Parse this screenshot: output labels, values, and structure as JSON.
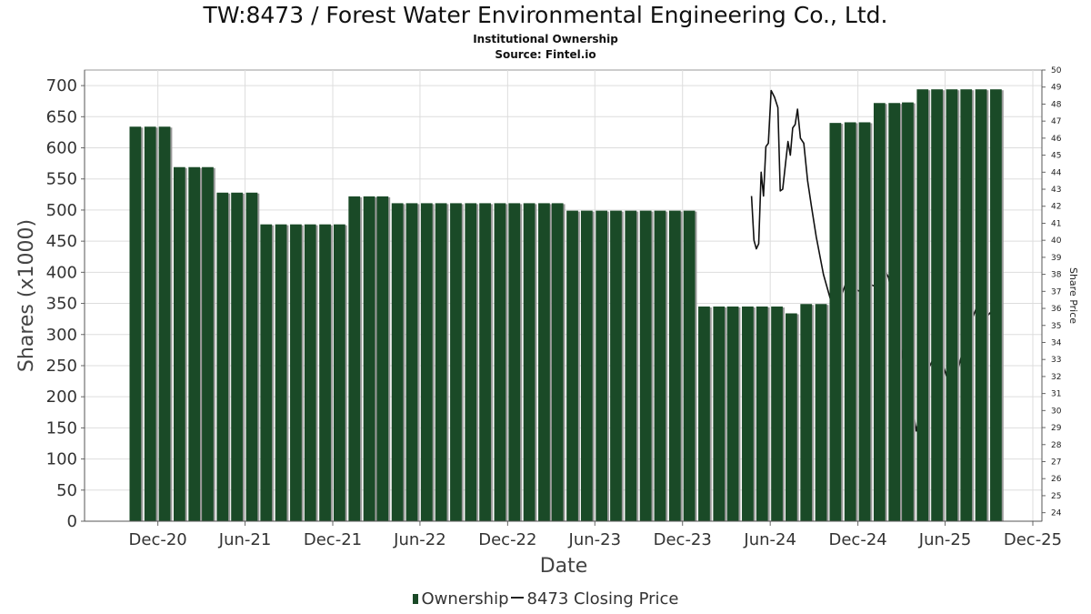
{
  "chart_data": {
    "type": "bar",
    "title": "TW:8473 / Forest Water Environmental Engineering Co., Ltd.",
    "subtitle": "Institutional Ownership",
    "source": "Source: Fintel.io",
    "xlabel": "Date",
    "ylabel": "Shares (x1000)",
    "y2label": "Share Price",
    "ylim": [
      0,
      725
    ],
    "y2lim": [
      23.5,
      50
    ],
    "yticks": [
      0,
      50,
      100,
      150,
      200,
      250,
      300,
      350,
      400,
      450,
      500,
      550,
      600,
      650,
      700
    ],
    "y2ticks": [
      24,
      25,
      26,
      27,
      28,
      29,
      30,
      31,
      32,
      33,
      34,
      35,
      36,
      37,
      38,
      39,
      40,
      41,
      42,
      43,
      44,
      45,
      46,
      47,
      48,
      49,
      50
    ],
    "xlim": [
      "2020-07-01",
      "2025-12-20"
    ],
    "xticks": [
      {
        "label": "Dec-20",
        "date": "2020-12-01"
      },
      {
        "label": "Jun-21",
        "date": "2021-06-01"
      },
      {
        "label": "Dec-21",
        "date": "2021-12-01"
      },
      {
        "label": "Jun-22",
        "date": "2022-06-01"
      },
      {
        "label": "Dec-22",
        "date": "2022-12-01"
      },
      {
        "label": "Jun-23",
        "date": "2023-06-01"
      },
      {
        "label": "Dec-23",
        "date": "2023-12-01"
      },
      {
        "label": "Jun-24",
        "date": "2024-06-01"
      },
      {
        "label": "Dec-24",
        "date": "2024-12-01"
      },
      {
        "label": "Jun-25",
        "date": "2025-06-01"
      },
      {
        "label": "Dec-25",
        "date": "2025-12-01"
      }
    ],
    "grid": true,
    "legend_position": "bottom",
    "series": [
      {
        "name": "Ownership",
        "type": "bar",
        "color": "#1a4a27",
        "points": [
          {
            "date": "2020-10-15",
            "value": 634
          },
          {
            "date": "2020-11-15",
            "value": 634
          },
          {
            "date": "2020-12-15",
            "value": 634
          },
          {
            "date": "2021-01-15",
            "value": 569
          },
          {
            "date": "2021-02-15",
            "value": 569
          },
          {
            "date": "2021-03-15",
            "value": 569
          },
          {
            "date": "2021-04-15",
            "value": 528
          },
          {
            "date": "2021-05-15",
            "value": 528
          },
          {
            "date": "2021-06-15",
            "value": 528
          },
          {
            "date": "2021-07-15",
            "value": 477
          },
          {
            "date": "2021-08-15",
            "value": 477
          },
          {
            "date": "2021-09-15",
            "value": 477
          },
          {
            "date": "2021-10-15",
            "value": 477
          },
          {
            "date": "2021-11-15",
            "value": 477
          },
          {
            "date": "2021-12-15",
            "value": 477
          },
          {
            "date": "2022-01-15",
            "value": 522
          },
          {
            "date": "2022-02-15",
            "value": 522
          },
          {
            "date": "2022-03-15",
            "value": 522
          },
          {
            "date": "2022-04-15",
            "value": 511
          },
          {
            "date": "2022-05-15",
            "value": 511
          },
          {
            "date": "2022-06-15",
            "value": 511
          },
          {
            "date": "2022-07-15",
            "value": 511
          },
          {
            "date": "2022-08-15",
            "value": 511
          },
          {
            "date": "2022-09-15",
            "value": 511
          },
          {
            "date": "2022-10-15",
            "value": 511
          },
          {
            "date": "2022-11-15",
            "value": 511
          },
          {
            "date": "2022-12-15",
            "value": 511
          },
          {
            "date": "2023-01-15",
            "value": 511
          },
          {
            "date": "2023-02-15",
            "value": 511
          },
          {
            "date": "2023-03-15",
            "value": 511
          },
          {
            "date": "2023-04-15",
            "value": 499
          },
          {
            "date": "2023-05-15",
            "value": 499
          },
          {
            "date": "2023-06-15",
            "value": 499
          },
          {
            "date": "2023-07-15",
            "value": 499
          },
          {
            "date": "2023-08-15",
            "value": 499
          },
          {
            "date": "2023-09-15",
            "value": 499
          },
          {
            "date": "2023-10-15",
            "value": 499
          },
          {
            "date": "2023-11-15",
            "value": 499
          },
          {
            "date": "2023-12-15",
            "value": 499
          },
          {
            "date": "2024-01-15",
            "value": 345
          },
          {
            "date": "2024-02-15",
            "value": 345
          },
          {
            "date": "2024-03-15",
            "value": 345
          },
          {
            "date": "2024-04-15",
            "value": 345
          },
          {
            "date": "2024-05-15",
            "value": 345
          },
          {
            "date": "2024-06-15",
            "value": 345
          },
          {
            "date": "2024-07-15",
            "value": 334
          },
          {
            "date": "2024-08-15",
            "value": 349
          },
          {
            "date": "2024-09-15",
            "value": 349
          },
          {
            "date": "2024-10-15",
            "value": 640
          },
          {
            "date": "2024-11-15",
            "value": 641
          },
          {
            "date": "2024-12-15",
            "value": 641
          },
          {
            "date": "2025-01-15",
            "value": 672
          },
          {
            "date": "2025-02-15",
            "value": 672
          },
          {
            "date": "2025-03-15",
            "value": 673
          },
          {
            "date": "2025-04-15",
            "value": 694
          },
          {
            "date": "2025-05-15",
            "value": 694
          },
          {
            "date": "2025-06-15",
            "value": 694
          },
          {
            "date": "2025-07-15",
            "value": 694
          },
          {
            "date": "2025-08-15",
            "value": 694
          },
          {
            "date": "2025-09-15",
            "value": 694
          }
        ]
      },
      {
        "name": "8473 Closing Price",
        "type": "line",
        "axis": "right",
        "color": "#111111",
        "points": [
          {
            "date": "2024-04-23",
            "value": 42.6
          },
          {
            "date": "2024-04-28",
            "value": 40.0
          },
          {
            "date": "2024-05-03",
            "value": 39.5
          },
          {
            "date": "2024-05-08",
            "value": 39.8
          },
          {
            "date": "2024-05-13",
            "value": 44.0
          },
          {
            "date": "2024-05-18",
            "value": 42.6
          },
          {
            "date": "2024-05-23",
            "value": 45.5
          },
          {
            "date": "2024-05-28",
            "value": 45.7
          },
          {
            "date": "2024-06-03",
            "value": 48.8
          },
          {
            "date": "2024-06-10",
            "value": 48.4
          },
          {
            "date": "2024-06-17",
            "value": 47.8
          },
          {
            "date": "2024-06-22",
            "value": 42.9
          },
          {
            "date": "2024-06-27",
            "value": 43.0
          },
          {
            "date": "2024-07-03",
            "value": 44.5
          },
          {
            "date": "2024-07-08",
            "value": 45.8
          },
          {
            "date": "2024-07-13",
            "value": 45.0
          },
          {
            "date": "2024-07-18",
            "value": 46.6
          },
          {
            "date": "2024-07-23",
            "value": 46.8
          },
          {
            "date": "2024-07-28",
            "value": 47.7
          },
          {
            "date": "2024-08-03",
            "value": 46.0
          },
          {
            "date": "2024-08-10",
            "value": 45.7
          },
          {
            "date": "2024-08-18",
            "value": 43.5
          },
          {
            "date": "2024-08-26",
            "value": 42.0
          },
          {
            "date": "2024-09-05",
            "value": 40.2
          },
          {
            "date": "2024-09-20",
            "value": 38.0
          },
          {
            "date": "2024-10-05",
            "value": 36.5
          },
          {
            "date": "2024-10-20",
            "value": 36.2
          },
          {
            "date": "2024-11-05",
            "value": 37.4
          },
          {
            "date": "2024-11-20",
            "value": 37.2
          },
          {
            "date": "2024-12-05",
            "value": 37.0
          },
          {
            "date": "2024-12-20",
            "value": 37.5
          },
          {
            "date": "2025-01-05",
            "value": 37.3
          },
          {
            "date": "2025-01-20",
            "value": 38.6
          },
          {
            "date": "2025-02-03",
            "value": 37.8
          },
          {
            "date": "2025-02-18",
            "value": 35.5
          },
          {
            "date": "2025-03-05",
            "value": 33.0
          },
          {
            "date": "2025-03-20",
            "value": 31.0
          },
          {
            "date": "2025-04-02",
            "value": 28.8
          },
          {
            "date": "2025-04-15",
            "value": 30.5
          },
          {
            "date": "2025-04-28",
            "value": 32.5
          },
          {
            "date": "2025-05-12",
            "value": 33.3
          },
          {
            "date": "2025-05-26",
            "value": 32.8
          },
          {
            "date": "2025-06-10",
            "value": 31.5
          },
          {
            "date": "2025-06-24",
            "value": 32.0
          },
          {
            "date": "2025-07-08",
            "value": 33.5
          },
          {
            "date": "2025-07-22",
            "value": 35.0
          },
          {
            "date": "2025-08-05",
            "value": 36.0
          },
          {
            "date": "2025-08-20",
            "value": 35.3
          },
          {
            "date": "2025-09-05",
            "value": 35.8
          },
          {
            "date": "2025-09-15",
            "value": 35.6
          }
        ]
      }
    ]
  }
}
